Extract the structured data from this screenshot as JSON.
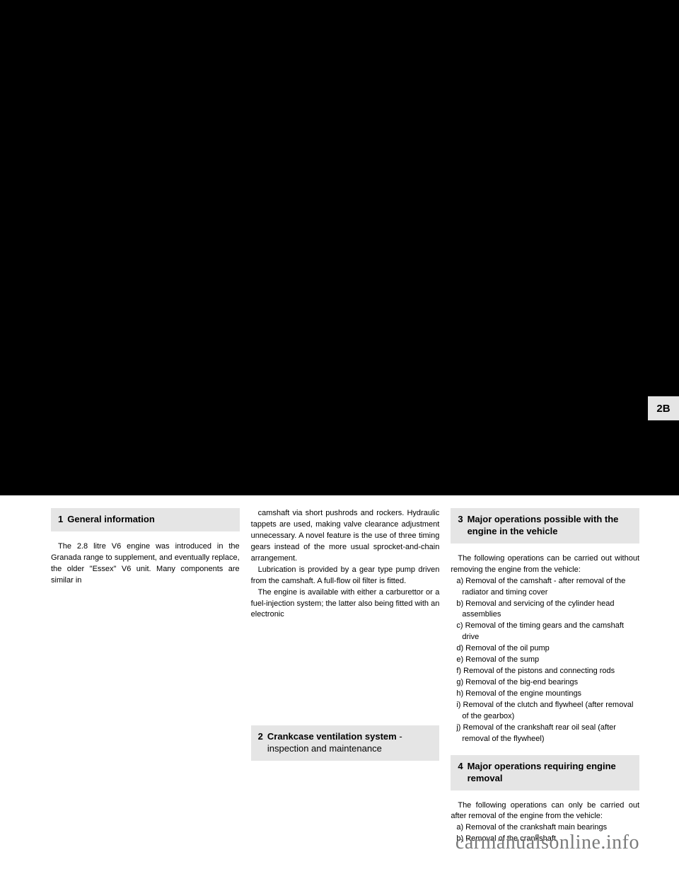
{
  "tab_label": "2B",
  "col1": {
    "header_num": "1",
    "header_title": "General information",
    "para1": "The 2.8 litre V6 engine was introduced in the Granada range to supplement, and eventually replace, the older \"Essex\" V6 unit. Many components are similar in",
    "para2": "camshaft via short pushrods and rockers. Hydraulic tappets are used, making valve clearance adjustment unnecessary. A novel feature is the use of three timing gears instead of the more usual sprocket-and-chain arrangement.",
    "para3": "Lubrication is provided by a gear type pump driven from the camshaft. A full-flow oil filter is fitted.",
    "para4": "The engine is available with either a carburettor or a fuel-injection system; the latter also being fitted with an electronic"
  },
  "col2": {
    "invisible_top": "",
    "header_num": "2",
    "header_title": "Crankcase ventilation system",
    "header_sub": " - inspection and maintenance"
  },
  "col3": {
    "header_num": "3",
    "header_title": "Major operations possible with the engine in the vehicle",
    "intro": "The following operations can be carried out without removing the engine from the vehicle:",
    "items": [
      "a) Removal of the camshaft - after removal of the radiator and timing cover",
      "b) Removal and servicing of the cylinder head assemblies",
      "c) Removal of the timing gears and the camshaft drive",
      "d) Removal of the oil pump",
      "e) Removal of the sump",
      "f) Removal of the pistons and connecting rods",
      "g) Removal of the big-end bearings",
      "h) Removal of the engine mountings",
      "i) Removal of the clutch and flywheel (after removal of the gearbox)",
      "j) Removal of the crankshaft rear oil seal (after removal of the flywheel)"
    ],
    "header4_num": "4",
    "header4_title": "Major operations requiring engine removal",
    "para4a": "The following operations can only be carried out after removal of the engine from the vehicle:",
    "items4": [
      "a) Removal of the crankshaft main bearings",
      "b) Removal of the crankshaft"
    ]
  },
  "footer": "carmanualsonline.info"
}
